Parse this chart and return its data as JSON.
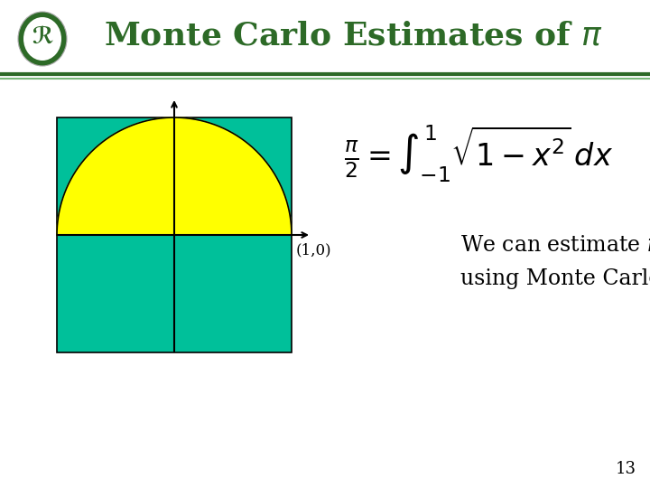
{
  "title": "Monte Carlo Estimates of $\\pi$",
  "title_color": "#2d6a27",
  "title_fontsize": 26,
  "bg_color": "#ffffff",
  "rect_color": "#00c09a",
  "semicircle_color": "#ffff00",
  "sep_line_color1": "#2d6a27",
  "sep_line_color2": "#7ab87a",
  "slide_number": "13",
  "point_label": "(1,0)",
  "body_fontsize": 17,
  "formula_fontsize": 24
}
